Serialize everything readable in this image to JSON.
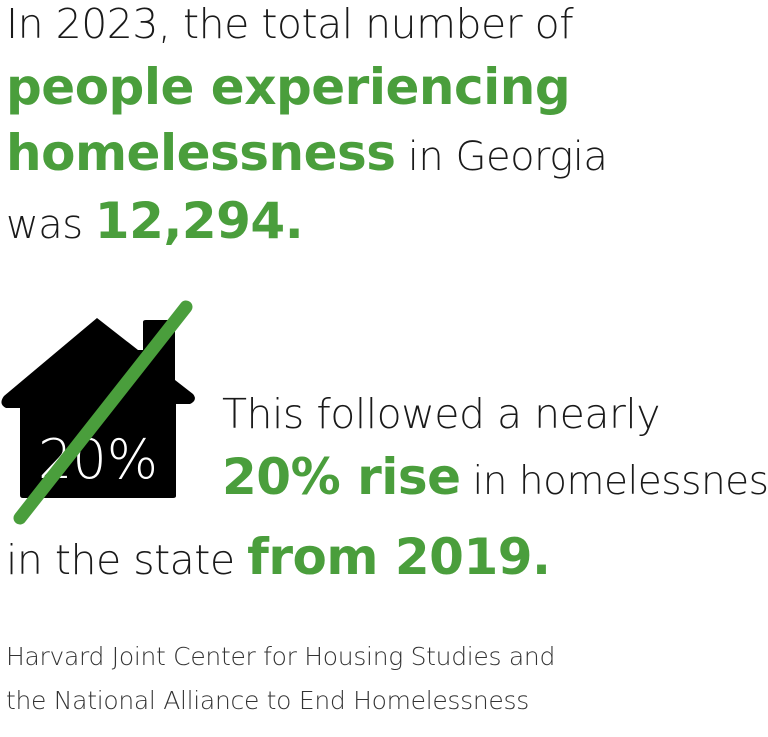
{
  "headline": {
    "line1": "In 2023, the total number of",
    "highlight1": "people experiencing",
    "highlight2": "homelessness",
    "line3_rest": " in Georgia",
    "line4_prefix": "was ",
    "total": "12,294."
  },
  "icon": {
    "name": "house-icon",
    "label": "20%"
  },
  "rise": {
    "line1": "This followed a nearly",
    "highlight": "20% rise",
    "line2_rest": " in homelessness",
    "line3_prefix": "in the state ",
    "highlight_year": "from 2019."
  },
  "source": {
    "line1": "Harvard Joint Center for Housing Studies and",
    "line2": "the National Alliance to End Homelessness"
  },
  "colors": {
    "accent": "#4a9e3c",
    "house": "#000000"
  }
}
